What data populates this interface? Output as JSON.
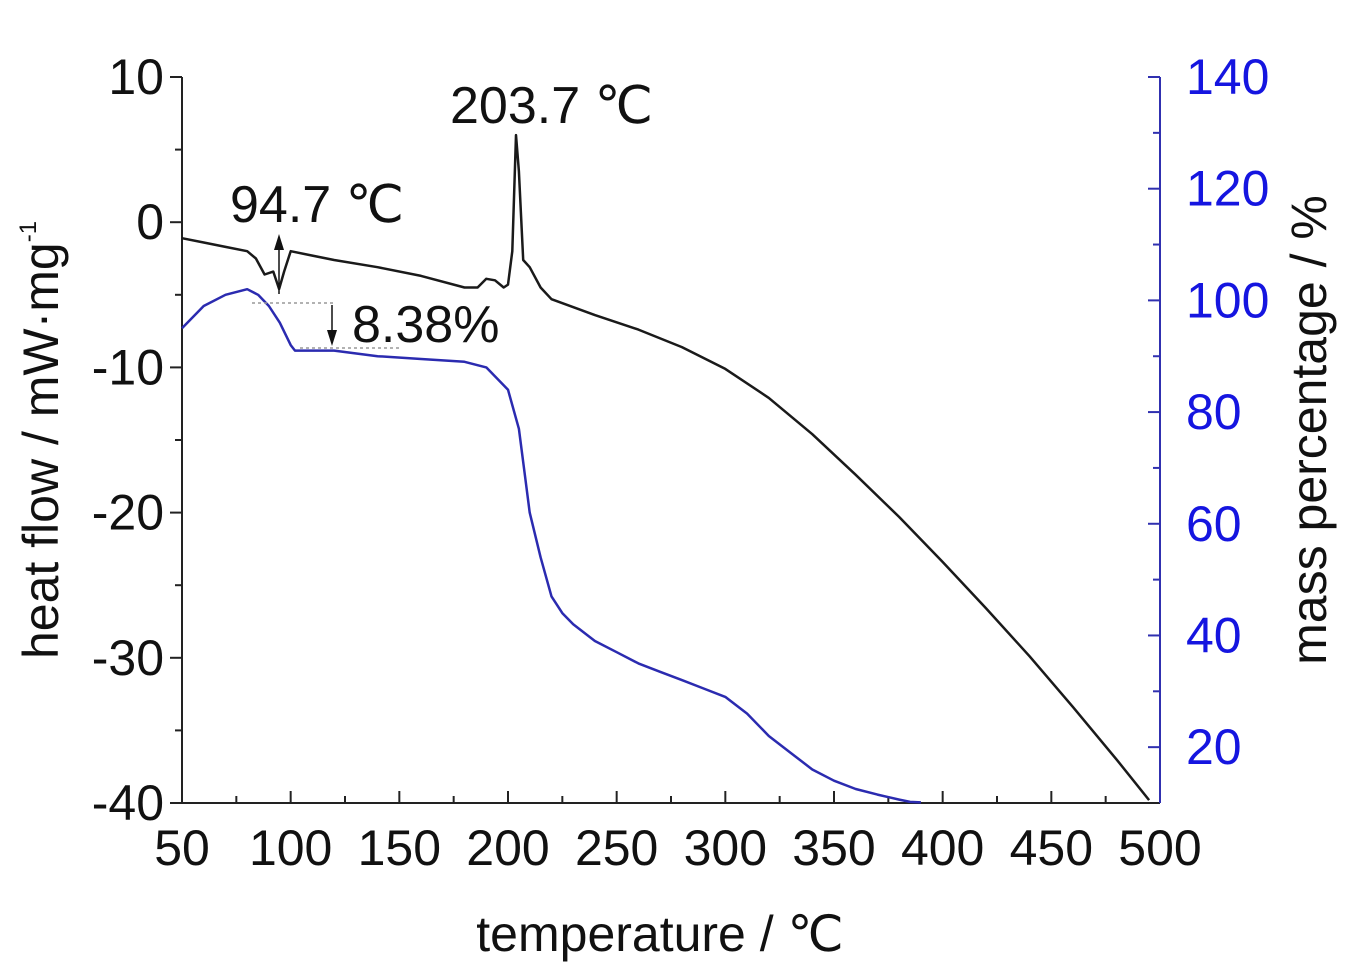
{
  "chart_data": {
    "type": "line",
    "xlabel": "temperature / ℃",
    "ylabel_left": "heat flow / mW·mg",
    "ylabel_left_superscript": "-1",
    "ylabel_right": "mass percentage / %",
    "xlim": [
      50,
      500
    ],
    "ylim_left": [
      -40,
      10
    ],
    "ylim_right": [
      10,
      140
    ],
    "x_ticks": [
      "50",
      "100",
      "150",
      "200",
      "250",
      "300",
      "350",
      "400",
      "450",
      "500"
    ],
    "y_left_ticks": [
      "10",
      "0",
      "-10",
      "-20",
      "-30",
      "-40"
    ],
    "y_right_ticks": [
      "140",
      "120",
      "100",
      "80",
      "60",
      "40",
      "20"
    ],
    "grid": false,
    "colors": {
      "heat_flow": "#1a1a1a",
      "mass": "#2b2bb0",
      "right_axis": "#1515e0"
    },
    "series": [
      {
        "axis": "left",
        "x": [
          50,
          60,
          70,
          80,
          84,
          88,
          92,
          94.7,
          97,
          100,
          110,
          120,
          140,
          160,
          180,
          186,
          190,
          194,
          198,
          200,
          202,
          203.7,
          205,
          207,
          210,
          215,
          220,
          240,
          260,
          280,
          300,
          320,
          340,
          360,
          380,
          400,
          420,
          440,
          460,
          480,
          495
        ],
        "y": [
          -1.1,
          -1.4,
          -1.7,
          -2.0,
          -2.5,
          -3.6,
          -3.4,
          -4.6,
          -3.4,
          -2.0,
          -2.3,
          -2.6,
          -3.1,
          -3.7,
          -4.5,
          -4.5,
          -3.9,
          -4.0,
          -4.5,
          -4.3,
          -2.0,
          6.0,
          3.5,
          -2.6,
          -3.1,
          -4.5,
          -5.3,
          -6.4,
          -7.4,
          -8.6,
          -10.1,
          -12.1,
          -14.6,
          -17.4,
          -20.3,
          -23.4,
          -26.6,
          -29.9,
          -33.4,
          -37.0,
          -39.8
        ]
      },
      {
        "axis": "right",
        "x": [
          50,
          60,
          70,
          80,
          85,
          90,
          95,
          100,
          102,
          105,
          110,
          120,
          140,
          160,
          180,
          190,
          200,
          205,
          208,
          210,
          215,
          220,
          225,
          230,
          240,
          250,
          260,
          270,
          280,
          290,
          300,
          310,
          320,
          330,
          340,
          350,
          360,
          370,
          380,
          385,
          390
        ],
        "y": [
          95,
          99,
          101,
          102,
          101,
          99,
          96,
          92,
          91,
          91,
          91,
          91,
          90,
          89.5,
          89,
          88,
          84,
          77,
          68,
          62,
          54,
          47,
          44,
          42,
          39,
          37,
          35,
          33.5,
          32,
          30.5,
          29,
          26,
          22,
          19,
          16,
          14,
          12.5,
          11.5,
          10.6,
          10.2,
          10.1
        ]
      }
    ],
    "annotations": [
      "203.7 ℃",
      "94.7 ℃",
      "8.38%"
    ]
  }
}
